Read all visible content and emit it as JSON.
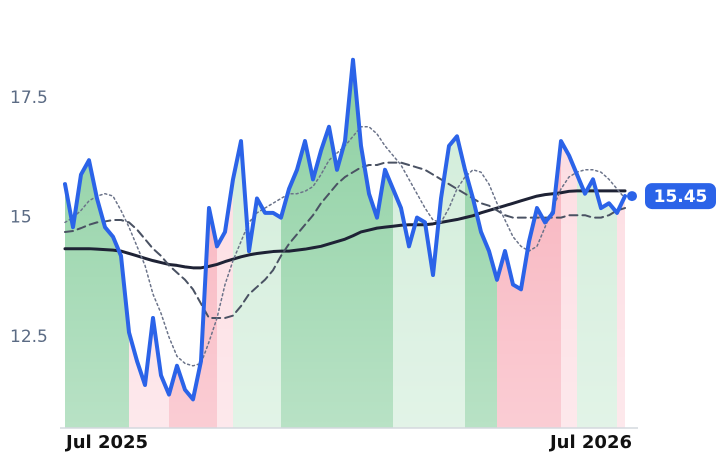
{
  "chart_data": {
    "type": "line",
    "categories": [
      "Jul 2025",
      null,
      null,
      null,
      null,
      null,
      null,
      null,
      null,
      null,
      null,
      null,
      null,
      null,
      null,
      null,
      null,
      null,
      null,
      null,
      null,
      null,
      null,
      null,
      null,
      null,
      null,
      null,
      null,
      null,
      null,
      null,
      null,
      null,
      null,
      null,
      null,
      null,
      null,
      null,
      null,
      null,
      null,
      null,
      null,
      null,
      null,
      null,
      null,
      null,
      null,
      null,
      null,
      null,
      null,
      null,
      null,
      null,
      null,
      null,
      null,
      null,
      null,
      null,
      null,
      null,
      null,
      null,
      null,
      null,
      "Jul 2026"
    ],
    "series": [
      {
        "color": "#2b63e8",
        "style": "solid",
        "width": 4,
        "values": [
          15.7,
          14.8,
          15.9,
          16.2,
          15.4,
          14.8,
          14.6,
          14.2,
          12.6,
          12.0,
          11.5,
          12.9,
          11.7,
          11.3,
          11.9,
          11.4,
          11.2,
          12.0,
          15.2,
          14.4,
          14.7,
          15.8,
          16.6,
          14.3,
          15.4,
          15.1,
          15.1,
          15.0,
          15.6,
          16.0,
          16.6,
          15.8,
          16.4,
          16.9,
          16.0,
          16.6,
          18.3,
          16.5,
          15.5,
          15.0,
          16.0,
          15.6,
          15.2,
          14.4,
          15.0,
          14.9,
          13.8,
          15.4,
          16.5,
          16.7,
          16.0,
          15.4,
          14.7,
          14.3,
          13.7,
          14.3,
          13.6,
          13.5,
          14.5,
          15.2,
          14.9,
          15.1,
          16.6,
          16.3,
          15.9,
          15.5,
          15.8,
          15.2,
          15.3,
          15.1,
          15.45
        ]
      },
      {
        "color": "#1e2235",
        "style": "solid",
        "width": 3,
        "values": [
          14.35,
          14.35,
          14.35,
          14.35,
          14.34,
          14.33,
          14.32,
          14.3,
          14.25,
          14.2,
          14.15,
          14.1,
          14.06,
          14.02,
          14.0,
          13.97,
          13.95,
          13.95,
          13.98,
          14.02,
          14.08,
          14.13,
          14.18,
          14.22,
          14.25,
          14.27,
          14.29,
          14.3,
          14.3,
          14.32,
          14.34,
          14.37,
          14.4,
          14.45,
          14.5,
          14.55,
          14.62,
          14.7,
          14.74,
          14.78,
          14.8,
          14.82,
          14.84,
          14.85,
          14.85,
          14.85,
          14.87,
          14.9,
          14.93,
          14.96,
          15.0,
          15.04,
          15.1,
          15.15,
          15.2,
          15.25,
          15.3,
          15.35,
          15.4,
          15.45,
          15.48,
          15.5,
          15.52,
          15.55,
          15.56,
          15.56,
          15.56,
          15.56,
          15.56,
          15.56,
          15.56
        ]
      },
      {
        "color": "#4a5263",
        "style": "dashed",
        "width": 2,
        "values": [
          14.7,
          14.72,
          14.78,
          14.85,
          14.9,
          14.92,
          14.95,
          14.95,
          14.9,
          14.75,
          14.55,
          14.35,
          14.2,
          14.0,
          13.85,
          13.7,
          13.5,
          13.2,
          12.9,
          12.9,
          12.9,
          12.95,
          13.15,
          13.4,
          13.55,
          13.7,
          13.9,
          14.2,
          14.45,
          14.65,
          14.85,
          15.05,
          15.3,
          15.5,
          15.7,
          15.85,
          15.95,
          16.05,
          16.1,
          16.1,
          16.15,
          16.15,
          16.15,
          16.1,
          16.05,
          16.0,
          15.9,
          15.8,
          15.7,
          15.6,
          15.5,
          15.4,
          15.3,
          15.25,
          15.15,
          15.05,
          15.0,
          15.0,
          15.0,
          15.0,
          15.0,
          15.0,
          15.0,
          15.05,
          15.05,
          15.05,
          15.0,
          15.0,
          15.05,
          15.15,
          15.2
        ]
      },
      {
        "color": "#6b7389",
        "style": "dotted",
        "width": 1.5,
        "values": [
          14.9,
          15.0,
          15.15,
          15.35,
          15.45,
          15.5,
          15.45,
          15.15,
          14.8,
          14.4,
          14.0,
          13.4,
          13.0,
          12.5,
          12.1,
          11.95,
          11.9,
          11.95,
          12.4,
          12.9,
          13.6,
          14.1,
          14.5,
          14.9,
          15.1,
          15.2,
          15.3,
          15.4,
          15.5,
          15.5,
          15.55,
          15.65,
          15.9,
          16.2,
          16.35,
          16.5,
          16.7,
          16.9,
          16.9,
          16.75,
          16.5,
          16.3,
          16.1,
          15.8,
          15.5,
          15.2,
          14.95,
          14.9,
          15.2,
          15.6,
          15.85,
          16.0,
          15.95,
          15.7,
          15.3,
          14.95,
          14.6,
          14.4,
          14.3,
          14.4,
          14.8,
          15.2,
          15.6,
          15.85,
          15.95,
          16.0,
          16.0,
          15.95,
          15.8,
          15.6,
          15.4
        ]
      }
    ],
    "regions": [
      {
        "from": 0,
        "to": 8,
        "color": "#86cd9c"
      },
      {
        "from": 8,
        "to": 13,
        "color": "#fcd8de"
      },
      {
        "from": 13,
        "to": 19,
        "color": "#f7a9b5"
      },
      {
        "from": 19,
        "to": 21,
        "color": "#fcd8de"
      },
      {
        "from": 21,
        "to": 27,
        "color": "#cdebd6"
      },
      {
        "from": 27,
        "to": 41,
        "color": "#86cd9c"
      },
      {
        "from": 41,
        "to": 50,
        "color": "#cdebd6"
      },
      {
        "from": 50,
        "to": 54,
        "color": "#86cd9c"
      },
      {
        "from": 54,
        "to": 62,
        "color": "#f7a9b5"
      },
      {
        "from": 62,
        "to": 64,
        "color": "#fcd8de"
      },
      {
        "from": 64,
        "to": 69,
        "color": "#cdebd6"
      },
      {
        "from": 69,
        "to": 70,
        "color": "#fcd8de"
      }
    ],
    "ylim": [
      10.6,
      19.3
    ],
    "yticks": [
      12.5,
      15.0,
      17.5
    ],
    "grid": false
  }
}
